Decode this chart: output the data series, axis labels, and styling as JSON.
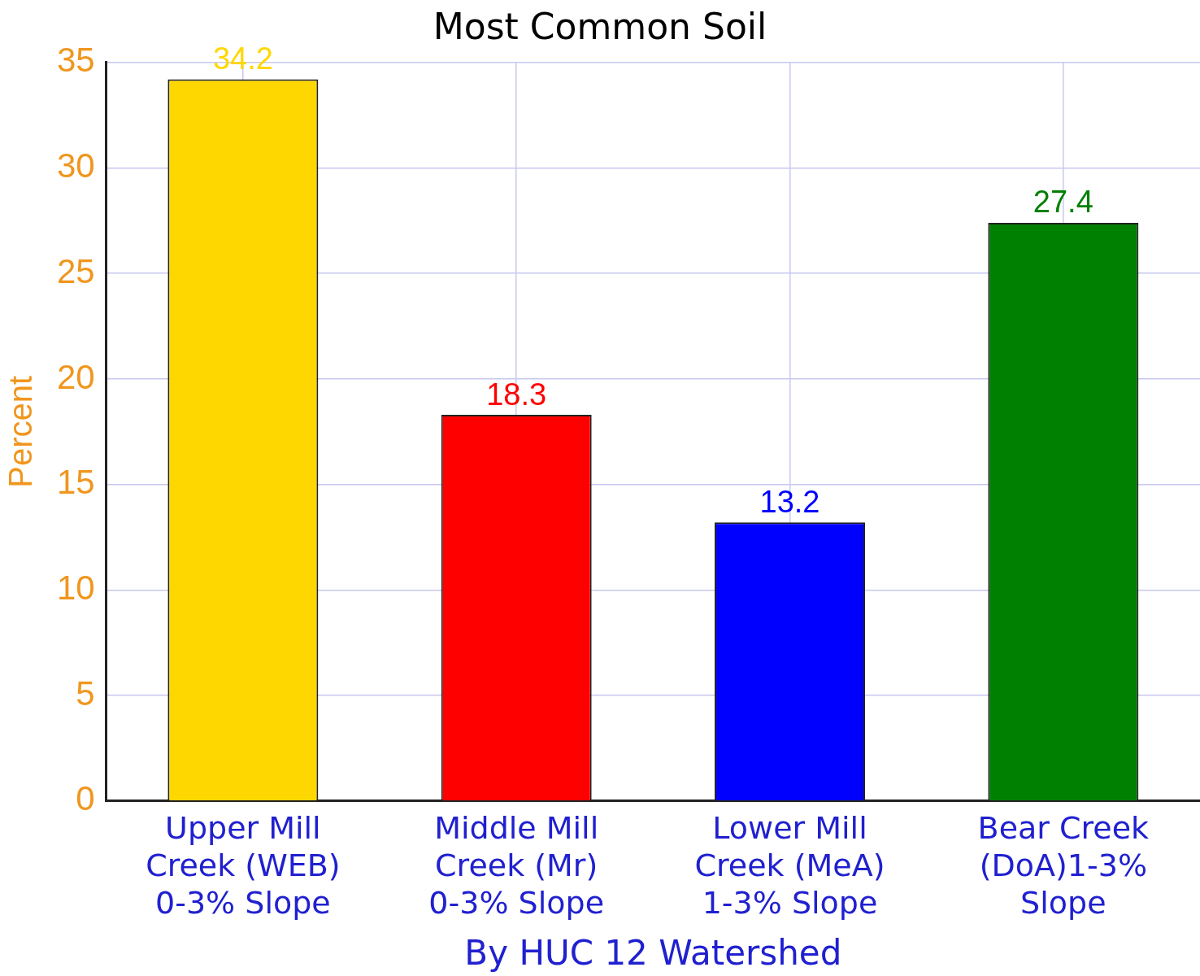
{
  "chart_data": {
    "type": "bar",
    "title": "Most Common Soil",
    "xlabel": "By HUC 12 Watershed",
    "ylabel": "Percent",
    "categories": [
      "Upper Mill Creek (WEB) 0-3% Slope",
      "Middle Mill Creek (Mr) 0-3% Slope",
      "Lower Mill Creek (MeA) 1-3% Slope",
      "Bear Creek (DoA)1-3% Slope"
    ],
    "values": [
      34.2,
      18.3,
      13.2,
      27.4
    ],
    "colors": [
      "#ffd700",
      "#ff0000",
      "#0000ff",
      "#008000"
    ],
    "ylim": [
      0,
      35
    ],
    "yticks": [
      0,
      5,
      10,
      15,
      20,
      25,
      30,
      35
    ],
    "grid": true,
    "legend": false,
    "data_labels": true
  }
}
